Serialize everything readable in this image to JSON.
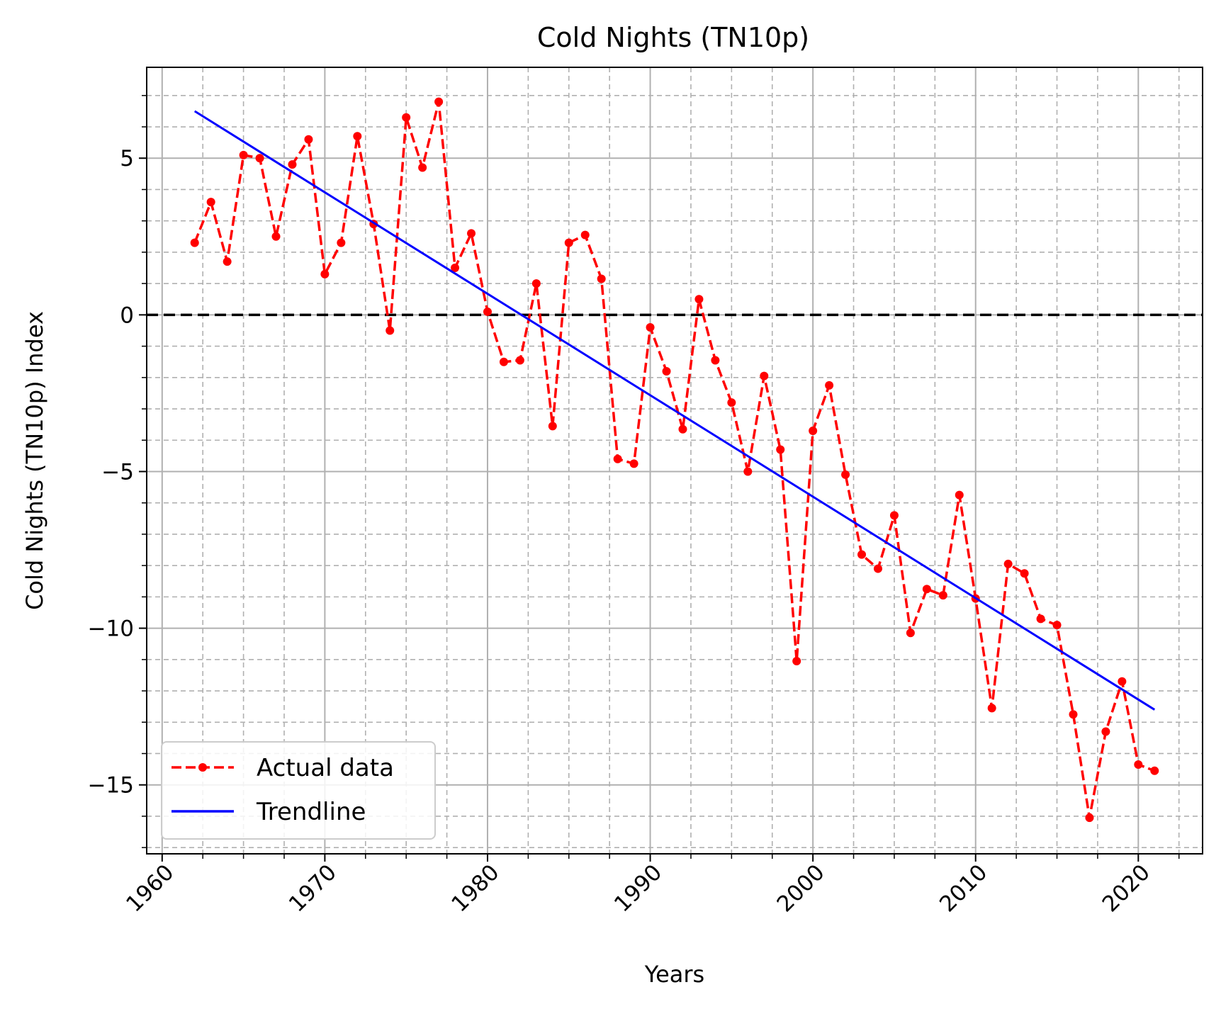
{
  "chart_data": {
    "type": "line",
    "title": "Cold Nights (TN10p)",
    "xlabel": "Years",
    "ylabel": "Cold Nights (TN10p) Index",
    "xlim": [
      1959.05,
      2023.95
    ],
    "ylim": [
      -17.2,
      7.9
    ],
    "x_ticks": [
      1960,
      1970,
      1980,
      1990,
      2000,
      2010,
      2020
    ],
    "x_tick_labels": [
      "1960",
      "1970",
      "1980",
      "1990",
      "2000",
      "2010",
      "2020"
    ],
    "x_minor_step": 2.5,
    "y_ticks": [
      5,
      0,
      -5,
      -10,
      -15
    ],
    "y_tick_labels": [
      "5",
      "0",
      "−5",
      "−10",
      "−15"
    ],
    "y_minor_step": 1,
    "grid": true,
    "legend_position": "lower-left",
    "reference_line": {
      "y": 0,
      "color": "#000000",
      "style": "dashed"
    },
    "series": [
      {
        "name": "Actual data",
        "color": "#ff0000",
        "style": "dashed-with-dots",
        "x": [
          1962,
          1963,
          1964,
          1965,
          1966,
          1967,
          1968,
          1969,
          1970,
          1971,
          1972,
          1973,
          1974,
          1975,
          1976,
          1977,
          1978,
          1979,
          1980,
          1981,
          1982,
          1983,
          1984,
          1985,
          1986,
          1987,
          1988,
          1989,
          1990,
          1991,
          1992,
          1993,
          1994,
          1995,
          1996,
          1997,
          1998,
          1999,
          2000,
          2001,
          2002,
          2003,
          2004,
          2005,
          2006,
          2007,
          2008,
          2009,
          2010,
          2011,
          2012,
          2013,
          2014,
          2015,
          2016,
          2017,
          2018,
          2019,
          2020,
          2021
        ],
        "y": [
          2.3,
          3.6,
          1.7,
          5.1,
          5.0,
          2.5,
          4.8,
          5.6,
          1.3,
          2.3,
          5.7,
          2.9,
          -0.5,
          6.3,
          4.7,
          6.8,
          1.5,
          2.6,
          0.1,
          -1.5,
          -1.45,
          1.0,
          -3.55,
          2.3,
          2.55,
          1.15,
          -4.6,
          -4.75,
          -0.4,
          -1.8,
          -3.65,
          0.5,
          -1.45,
          -2.8,
          -5.0,
          -1.95,
          -4.3,
          -11.05,
          -3.7,
          -2.25,
          -5.1,
          -7.65,
          -8.1,
          -6.4,
          -10.15,
          -8.75,
          -8.95,
          -5.75,
          -9.05,
          -12.55,
          -7.95,
          -8.25,
          -9.7,
          -9.9,
          -12.75,
          -16.05,
          -13.3,
          -11.7,
          -14.35,
          -14.55
        ]
      },
      {
        "name": "Trendline",
        "color": "#0000ff",
        "style": "solid",
        "x": [
          1962,
          2021
        ],
        "y": [
          6.5,
          -12.6
        ]
      }
    ]
  }
}
